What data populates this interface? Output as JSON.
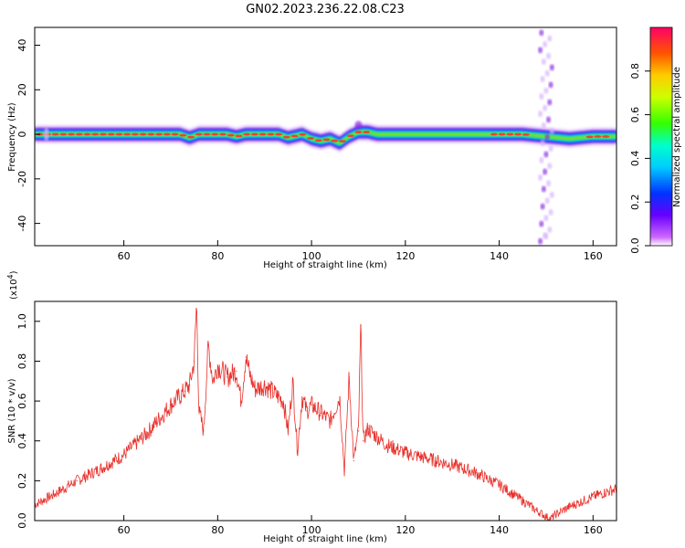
{
  "figure": {
    "title": "GN02.2023.236.22.08.C23"
  },
  "chart_data": [
    {
      "type": "heatmap",
      "xlabel": "Height of straight line (km)",
      "ylabel": "Frequency (Hz)",
      "xlim": [
        41,
        165
      ],
      "ylim": [
        -50,
        48
      ],
      "xticks": [
        "60",
        "80",
        "100",
        "120",
        "140",
        "160"
      ],
      "yticks": [
        "40",
        "20",
        "0",
        "-20",
        "-40"
      ],
      "colorbar": {
        "label": "Normalized spectral amplitude",
        "ticks": [
          "0.0",
          "0.2",
          "0.4",
          "0.6",
          "0.8"
        ],
        "range": [
          0,
          1
        ]
      },
      "band": {
        "center_hz": [
          [
            41,
            0
          ],
          [
            72,
            0
          ],
          [
            74,
            -1.5
          ],
          [
            76,
            0
          ],
          [
            82,
            0
          ],
          [
            84,
            -1
          ],
          [
            86,
            0
          ],
          [
            93,
            0
          ],
          [
            95,
            -1.5
          ],
          [
            98,
            0
          ],
          [
            100,
            -2
          ],
          [
            102,
            -3
          ],
          [
            104,
            -2
          ],
          [
            106,
            -4
          ],
          [
            108,
            -1
          ],
          [
            110,
            1
          ],
          [
            112,
            1
          ],
          [
            114,
            0
          ],
          [
            145,
            0
          ],
          [
            150,
            -1
          ],
          [
            155,
            -2
          ],
          [
            160,
            -1
          ],
          [
            165,
            -1
          ]
        ],
        "broadband_event_km": 150
      }
    },
    {
      "type": "line",
      "xlabel": "Height of straight line (km)",
      "ylabel": "SNR (10 * v/v)",
      "y_multiplier": "(x10",
      "y_multiplier_exp": "4",
      "y_multiplier_close": ")",
      "xlim": [
        41,
        165
      ],
      "ylim": [
        0,
        1.1
      ],
      "xticks": [
        "60",
        "80",
        "100",
        "120",
        "140",
        "160"
      ],
      "yticks": [
        "0.0",
        "0.2",
        "0.4",
        "0.6",
        "0.8",
        "1.0"
      ],
      "series": [
        {
          "color": "#e8302a",
          "x": [
            41,
            45,
            50,
            55,
            60,
            65,
            70,
            73,
            74,
            75,
            75.5,
            76,
            77,
            78,
            79,
            80,
            82,
            84,
            85,
            86,
            87,
            88,
            90,
            92,
            94,
            95,
            96,
            97,
            98,
            99,
            100,
            102,
            104,
            106,
            107,
            108,
            109,
            110,
            110.5,
            111,
            112,
            114,
            116,
            120,
            125,
            130,
            135,
            140,
            145,
            148,
            150,
            151,
            152,
            155,
            160,
            165
          ],
          "y": [
            0.08,
            0.13,
            0.2,
            0.26,
            0.33,
            0.44,
            0.58,
            0.65,
            0.68,
            0.8,
            1.1,
            0.55,
            0.45,
            0.88,
            0.7,
            0.78,
            0.72,
            0.75,
            0.6,
            0.82,
            0.72,
            0.66,
            0.68,
            0.64,
            0.6,
            0.45,
            0.7,
            0.35,
            0.62,
            0.55,
            0.58,
            0.54,
            0.5,
            0.62,
            0.25,
            0.72,
            0.3,
            0.45,
            0.98,
            0.4,
            0.46,
            0.42,
            0.38,
            0.34,
            0.31,
            0.28,
            0.24,
            0.18,
            0.1,
            0.05,
            0.02,
            0.01,
            0.03,
            0.07,
            0.12,
            0.16
          ]
        }
      ]
    }
  ],
  "colors": {
    "line": "#e8302a",
    "axis": "#000000"
  }
}
